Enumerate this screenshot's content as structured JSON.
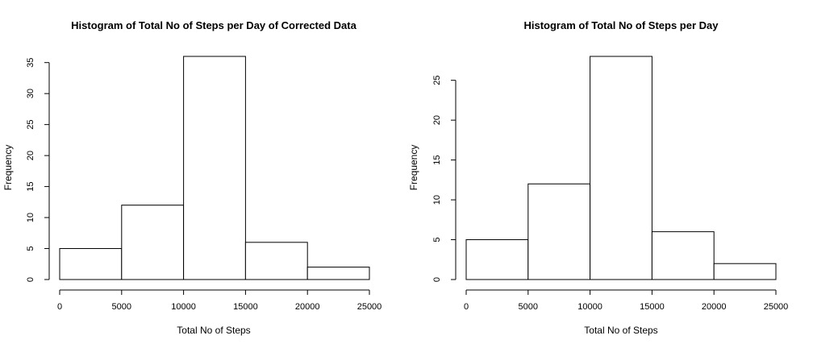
{
  "chart_data": [
    {
      "type": "bar",
      "title": "Histogram of Total No of Steps per Day of Corrected Data",
      "xlabel": "Total No of Steps",
      "ylabel": "Frequency",
      "bins": [
        [
          0,
          5000
        ],
        [
          5000,
          10000
        ],
        [
          10000,
          15000
        ],
        [
          15000,
          20000
        ],
        [
          20000,
          25000
        ]
      ],
      "values": [
        5,
        12,
        36,
        6,
        2
      ],
      "xlim": [
        0,
        25000
      ],
      "ylim": [
        0,
        36
      ],
      "x_ticks": [
        0,
        5000,
        10000,
        15000,
        20000,
        25000
      ],
      "y_ticks": [
        0,
        5,
        10,
        15,
        20,
        25,
        30,
        35
      ],
      "grid": false,
      "bar_fill": "#ffffff",
      "bar_stroke": "#000000"
    },
    {
      "type": "bar",
      "title": "Histogram of Total No of Steps per Day",
      "xlabel": "Total No of Steps",
      "ylabel": "Frequency",
      "bins": [
        [
          0,
          5000
        ],
        [
          5000,
          10000
        ],
        [
          10000,
          15000
        ],
        [
          15000,
          20000
        ],
        [
          20000,
          25000
        ]
      ],
      "values": [
        5,
        12,
        28,
        6,
        2
      ],
      "xlim": [
        0,
        25000
      ],
      "ylim": [
        0,
        28
      ],
      "x_ticks": [
        0,
        5000,
        10000,
        15000,
        20000,
        25000
      ],
      "y_ticks": [
        0,
        5,
        10,
        15,
        20,
        25
      ],
      "grid": false,
      "bar_fill": "#ffffff",
      "bar_stroke": "#000000"
    }
  ]
}
